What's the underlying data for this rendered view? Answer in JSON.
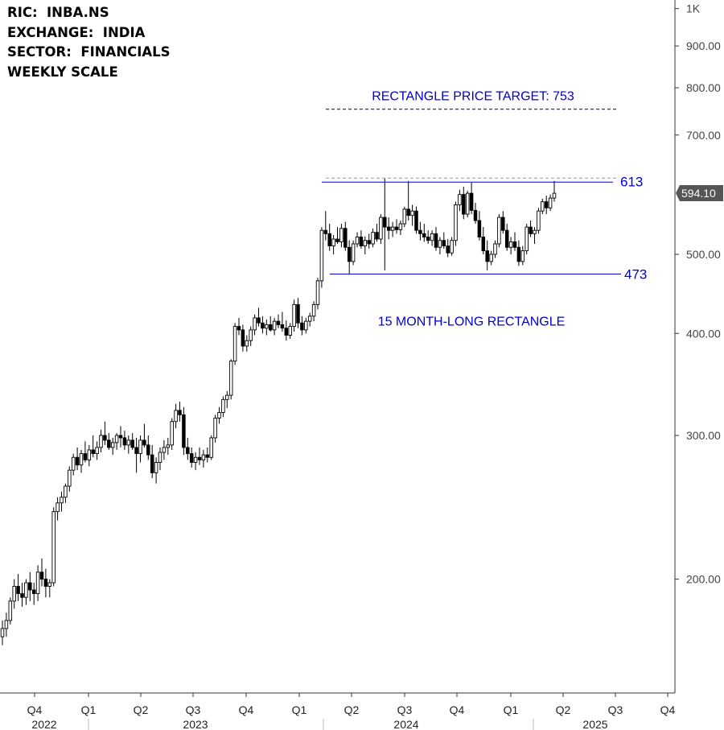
{
  "info_block": [
    "RIC:  INBA.NS",
    "EXCHANGE:  INDIA",
    "SECTOR:  FINANCIALS",
    "WEEKLY SCALE"
  ],
  "chart_data": {
    "type": "candlestick",
    "scale": "log",
    "ylim": [
      140,
      1000
    ],
    "y_ticks": [
      {
        "value": 1000,
        "label": "1K"
      },
      {
        "value": 900,
        "label": "900.00"
      },
      {
        "value": 800,
        "label": "800.00"
      },
      {
        "value": 700,
        "label": "700.00"
      },
      {
        "value": 500,
        "label": "500.00"
      },
      {
        "value": 400,
        "label": "400.00"
      },
      {
        "value": 300,
        "label": "300.00"
      },
      {
        "value": 200,
        "label": "200.00"
      }
    ],
    "x_quarter_labels": [
      "Q4",
      "Q1",
      "Q2",
      "Q3",
      "Q4",
      "Q1",
      "Q2",
      "Q3",
      "Q4",
      "Q1",
      "Q2",
      "Q3",
      "Q4"
    ],
    "x_year_labels": [
      {
        "label": "2022",
        "after_quarter": 0
      },
      {
        "label": "2023",
        "after_quarter": 2
      },
      {
        "label": "2024",
        "after_quarter": 6
      },
      {
        "label": "2025",
        "after_quarter": 10
      }
    ],
    "last_price": {
      "value": 594.1,
      "label": "594.10"
    },
    "resistance": {
      "value": 613,
      "label": "613"
    },
    "support": {
      "value": 473,
      "label": "473"
    },
    "price_target": {
      "value": 753,
      "label": "RECTANGLE PRICE TARGET: 753"
    },
    "pattern_label": "15 MONTH-LONG RECTANGLE",
    "colors": {
      "up": "#ffffff",
      "down": "#000000",
      "wick": "#000000",
      "annotation": "#0000cc",
      "axis": "#333333",
      "target_line": "#2222dd",
      "high_line": "#999999"
    },
    "weekly_ohlc": [
      [
        170,
        178,
        166,
        174
      ],
      [
        174,
        182,
        170,
        178
      ],
      [
        178,
        190,
        176,
        188
      ],
      [
        188,
        200,
        184,
        196
      ],
      [
        196,
        203,
        188,
        192
      ],
      [
        192,
        198,
        185,
        190
      ],
      [
        190,
        200,
        186,
        198
      ],
      [
        198,
        204,
        188,
        194
      ],
      [
        194,
        198,
        186,
        192
      ],
      [
        192,
        208,
        188,
        204
      ],
      [
        204,
        212,
        196,
        200
      ],
      [
        200,
        206,
        190,
        196
      ],
      [
        196,
        200,
        190,
        198
      ],
      [
        198,
        245,
        196,
        242
      ],
      [
        242,
        252,
        236,
        248
      ],
      [
        248,
        256,
        242,
        252
      ],
      [
        252,
        262,
        248,
        260
      ],
      [
        260,
        275,
        256,
        272
      ],
      [
        272,
        285,
        268,
        282
      ],
      [
        282,
        290,
        272,
        276
      ],
      [
        276,
        288,
        270,
        285
      ],
      [
        285,
        295,
        278,
        280
      ],
      [
        280,
        292,
        275,
        288
      ],
      [
        288,
        300,
        282,
        285
      ],
      [
        285,
        295,
        280,
        290
      ],
      [
        290,
        305,
        286,
        300
      ],
      [
        300,
        312,
        292,
        296
      ],
      [
        296,
        302,
        288,
        290
      ],
      [
        290,
        298,
        284,
        294
      ],
      [
        294,
        302,
        288,
        300
      ],
      [
        300,
        308,
        290,
        298
      ],
      [
        298,
        304,
        288,
        292
      ],
      [
        292,
        300,
        285,
        296
      ],
      [
        296,
        302,
        288,
        290
      ],
      [
        290,
        298,
        270,
        285
      ],
      [
        285,
        300,
        278,
        296
      ],
      [
        296,
        310,
        290,
        292
      ],
      [
        292,
        300,
        280,
        284
      ],
      [
        284,
        292,
        266,
        270
      ],
      [
        270,
        282,
        262,
        278
      ],
      [
        278,
        290,
        272,
        286
      ],
      [
        286,
        296,
        280,
        290
      ],
      [
        290,
        298,
        284,
        292
      ],
      [
        292,
        315,
        288,
        312
      ],
      [
        312,
        328,
        306,
        322
      ],
      [
        322,
        330,
        312,
        318
      ],
      [
        318,
        325,
        284,
        290
      ],
      [
        290,
        298,
        280,
        285
      ],
      [
        285,
        290,
        274,
        278
      ],
      [
        278,
        286,
        272,
        282
      ],
      [
        282,
        290,
        276,
        280
      ],
      [
        280,
        288,
        274,
        284
      ],
      [
        284,
        290,
        278,
        282
      ],
      [
        282,
        300,
        280,
        298
      ],
      [
        298,
        318,
        294,
        315
      ],
      [
        315,
        325,
        310,
        320
      ],
      [
        320,
        335,
        316,
        332
      ],
      [
        332,
        340,
        324,
        336
      ],
      [
        336,
        372,
        332,
        370
      ],
      [
        370,
        412,
        366,
        408
      ],
      [
        408,
        418,
        398,
        404
      ],
      [
        404,
        410,
        380,
        386
      ],
      [
        386,
        398,
        380,
        392
      ],
      [
        392,
        408,
        386,
        404
      ],
      [
        404,
        422,
        398,
        418
      ],
      [
        418,
        430,
        408,
        412
      ],
      [
        412,
        420,
        400,
        406
      ],
      [
        406,
        416,
        398,
        410
      ],
      [
        410,
        420,
        402,
        404
      ],
      [
        404,
        418,
        398,
        414
      ],
      [
        414,
        422,
        406,
        410
      ],
      [
        410,
        425,
        402,
        406
      ],
      [
        406,
        415,
        392,
        398
      ],
      [
        398,
        412,
        394,
        408
      ],
      [
        408,
        440,
        402,
        434
      ],
      [
        434,
        442,
        406,
        412
      ],
      [
        412,
        420,
        398,
        404
      ],
      [
        404,
        418,
        400,
        414
      ],
      [
        414,
        424,
        408,
        420
      ],
      [
        420,
        438,
        414,
        434
      ],
      [
        434,
        468,
        428,
        464
      ],
      [
        464,
        540,
        455,
        535
      ],
      [
        535,
        565,
        520,
        530
      ],
      [
        530,
        545,
        505,
        512
      ],
      [
        512,
        528,
        500,
        522
      ],
      [
        522,
        540,
        515,
        518
      ],
      [
        518,
        545,
        510,
        538
      ],
      [
        538,
        548,
        505,
        510
      ],
      [
        510,
        520,
        472,
        490
      ],
      [
        490,
        520,
        485,
        515
      ],
      [
        515,
        532,
        510,
        525
      ],
      [
        525,
        535,
        508,
        512
      ],
      [
        512,
        526,
        500,
        520
      ],
      [
        520,
        530,
        508,
        515
      ],
      [
        515,
        538,
        510,
        532
      ],
      [
        532,
        545,
        518,
        522
      ],
      [
        522,
        560,
        515,
        555
      ],
      [
        555,
        620,
        478,
        540
      ],
      [
        540,
        555,
        522,
        535
      ],
      [
        535,
        548,
        525,
        540
      ],
      [
        540,
        552,
        530,
        536
      ],
      [
        536,
        550,
        528,
        545
      ],
      [
        545,
        572,
        540,
        568
      ],
      [
        568,
        615,
        550,
        558
      ],
      [
        558,
        575,
        542,
        565
      ],
      [
        565,
        572,
        530,
        535
      ],
      [
        535,
        548,
        520,
        530
      ],
      [
        530,
        545,
        518,
        525
      ],
      [
        525,
        535,
        515,
        520
      ],
      [
        520,
        535,
        512,
        530
      ],
      [
        530,
        540,
        505,
        510
      ],
      [
        510,
        525,
        500,
        520
      ],
      [
        520,
        532,
        508,
        512
      ],
      [
        512,
        522,
        496,
        502
      ],
      [
        502,
        525,
        498,
        520
      ],
      [
        520,
        580,
        512,
        575
      ],
      [
        575,
        600,
        565,
        592
      ],
      [
        592,
        605,
        552,
        560
      ],
      [
        560,
        598,
        555,
        594
      ],
      [
        594,
        612,
        560,
        566
      ],
      [
        566,
        578,
        545,
        550
      ],
      [
        550,
        565,
        520,
        525
      ],
      [
        525,
        540,
        500,
        505
      ],
      [
        505,
        520,
        478,
        490
      ],
      [
        490,
        505,
        485,
        500
      ],
      [
        500,
        520,
        495,
        515
      ],
      [
        515,
        560,
        510,
        555
      ],
      [
        555,
        565,
        530,
        535
      ],
      [
        535,
        545,
        505,
        510
      ],
      [
        510,
        525,
        500,
        518
      ],
      [
        518,
        532,
        505,
        510
      ],
      [
        510,
        520,
        484,
        490
      ],
      [
        490,
        512,
        485,
        505
      ],
      [
        505,
        545,
        500,
        540
      ],
      [
        540,
        550,
        525,
        530
      ],
      [
        530,
        540,
        515,
        535
      ],
      [
        535,
        570,
        530,
        565
      ],
      [
        565,
        585,
        560,
        580
      ],
      [
        580,
        590,
        560,
        570
      ],
      [
        570,
        592,
        565,
        586
      ],
      [
        586,
        615,
        580,
        594
      ]
    ]
  }
}
